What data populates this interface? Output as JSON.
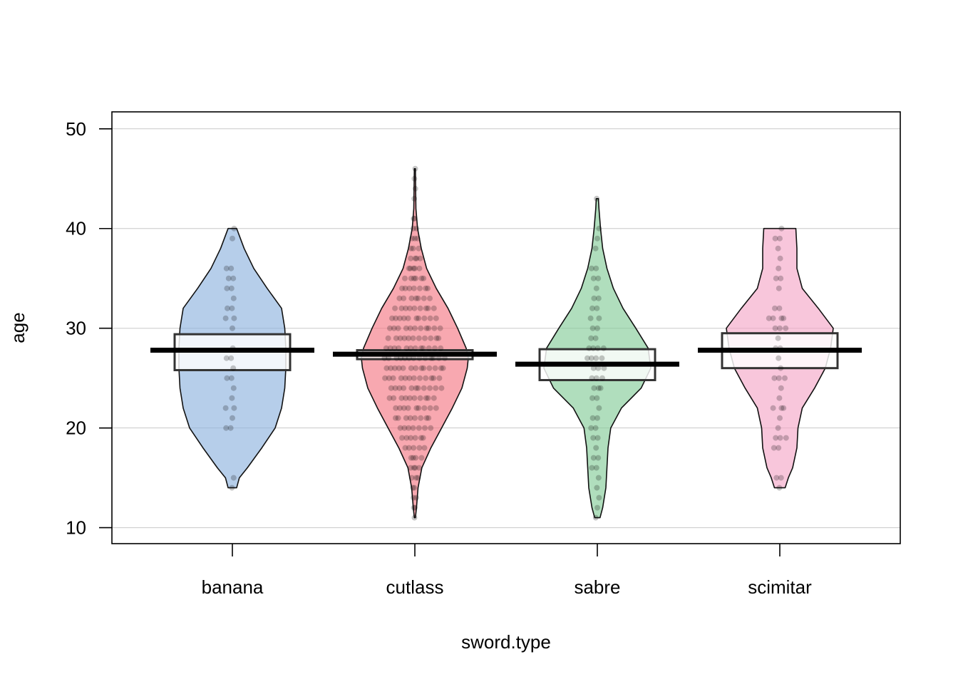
{
  "chart_data": {
    "type": "pirateplot",
    "xlabel": "sword.type",
    "ylabel": "age",
    "ylim": [
      8.4,
      51.7
    ],
    "y_ticks": [
      10,
      20,
      30,
      40,
      50
    ],
    "grid": true,
    "categories": [
      "banana",
      "cutlass",
      "sabre",
      "scimitar"
    ],
    "colors": [
      "#8FB4DE",
      "#F47A85",
      "#85CC99",
      "#F4A7C8"
    ],
    "groups": [
      {
        "name": "banana",
        "mean": 27.8,
        "hdi": [
          25.8,
          29.4
        ],
        "min": 14,
        "max": 40,
        "density": [
          [
            14,
            0.08
          ],
          [
            15,
            0.13
          ],
          [
            16,
            0.28
          ],
          [
            18,
            0.55
          ],
          [
            20,
            0.8
          ],
          [
            22,
            0.92
          ],
          [
            24,
            0.98
          ],
          [
            26,
            1.0
          ],
          [
            28,
            1.0
          ],
          [
            30,
            0.98
          ],
          [
            32,
            0.92
          ],
          [
            34,
            0.65
          ],
          [
            36,
            0.4
          ],
          [
            38,
            0.22
          ],
          [
            40,
            0.08
          ]
        ],
        "points": [
          14,
          15,
          20,
          20,
          21,
          22,
          22,
          23,
          24,
          25,
          25,
          26,
          27,
          27,
          28,
          30,
          31,
          31,
          32,
          32,
          33,
          34,
          34,
          35,
          35,
          36,
          36,
          39,
          40
        ]
      },
      {
        "name": "cutlass",
        "mean": 27.4,
        "hdi": [
          26.9,
          27.8
        ],
        "min": 11,
        "max": 46,
        "density": [
          [
            11,
            0.01
          ],
          [
            12,
            0.03
          ],
          [
            14,
            0.06
          ],
          [
            16,
            0.13
          ],
          [
            18,
            0.3
          ],
          [
            20,
            0.5
          ],
          [
            22,
            0.7
          ],
          [
            24,
            0.88
          ],
          [
            26,
            0.98
          ],
          [
            27,
            1.0
          ],
          [
            28,
            0.96
          ],
          [
            30,
            0.8
          ],
          [
            32,
            0.62
          ],
          [
            34,
            0.4
          ],
          [
            36,
            0.22
          ],
          [
            38,
            0.12
          ],
          [
            40,
            0.05
          ],
          [
            42,
            0.02
          ],
          [
            44,
            0.015
          ],
          [
            46,
            0.01
          ]
        ],
        "points": [
          11,
          12,
          12,
          13,
          13,
          14,
          14,
          15,
          15,
          15,
          16,
          16,
          16,
          16,
          17,
          17,
          17,
          17,
          18,
          18,
          18,
          18,
          18,
          19,
          19,
          19,
          19,
          19,
          19,
          20,
          20,
          20,
          20,
          20,
          20,
          20,
          21,
          21,
          21,
          21,
          21,
          21,
          21,
          21,
          22,
          22,
          22,
          22,
          22,
          22,
          22,
          22,
          22,
          23,
          23,
          23,
          23,
          23,
          23,
          23,
          23,
          23,
          23,
          24,
          24,
          24,
          24,
          24,
          24,
          24,
          24,
          24,
          24,
          24,
          25,
          25,
          25,
          25,
          25,
          25,
          25,
          25,
          25,
          25,
          25,
          25,
          26,
          26,
          26,
          26,
          26,
          26,
          26,
          26,
          26,
          26,
          26,
          26,
          26,
          27,
          27,
          27,
          27,
          27,
          27,
          27,
          27,
          27,
          27,
          27,
          27,
          27,
          28,
          28,
          28,
          28,
          28,
          28,
          28,
          28,
          28,
          28,
          28,
          28,
          29,
          29,
          29,
          29,
          29,
          29,
          29,
          29,
          29,
          29,
          29,
          30,
          30,
          30,
          30,
          30,
          30,
          30,
          30,
          30,
          30,
          30,
          31,
          31,
          31,
          31,
          31,
          31,
          31,
          31,
          31,
          31,
          32,
          32,
          32,
          32,
          32,
          32,
          32,
          32,
          32,
          33,
          33,
          33,
          33,
          33,
          33,
          33,
          34,
          34,
          34,
          34,
          34,
          34,
          34,
          35,
          35,
          35,
          35,
          35,
          35,
          36,
          36,
          36,
          36,
          36,
          37,
          37,
          37,
          37,
          38,
          38,
          38,
          39,
          39,
          39,
          40,
          40,
          41,
          41,
          43,
          44,
          45,
          46
        ]
      },
      {
        "name": "sabre",
        "mean": 26.4,
        "hdi": [
          24.8,
          27.9
        ],
        "min": 11,
        "max": 43,
        "density": [
          [
            11,
            0.05
          ],
          [
            12,
            0.1
          ],
          [
            14,
            0.16
          ],
          [
            16,
            0.18
          ],
          [
            18,
            0.2
          ],
          [
            20,
            0.25
          ],
          [
            22,
            0.45
          ],
          [
            24,
            0.82
          ],
          [
            26,
            1.0
          ],
          [
            28,
            0.95
          ],
          [
            30,
            0.72
          ],
          [
            32,
            0.48
          ],
          [
            34,
            0.3
          ],
          [
            36,
            0.18
          ],
          [
            38,
            0.1
          ],
          [
            40,
            0.06
          ],
          [
            42,
            0.03
          ],
          [
            43,
            0.02
          ]
        ],
        "points": [
          11,
          12,
          13,
          14,
          15,
          16,
          16,
          17,
          17,
          18,
          19,
          19,
          20,
          20,
          21,
          21,
          22,
          23,
          23,
          24,
          24,
          24,
          25,
          25,
          25,
          26,
          26,
          26,
          27,
          27,
          27,
          27,
          28,
          28,
          28,
          28,
          29,
          29,
          30,
          30,
          31,
          31,
          32,
          32,
          33,
          33,
          34,
          35,
          35,
          36,
          36,
          38,
          39,
          40,
          43
        ]
      },
      {
        "name": "scimitar",
        "mean": 27.8,
        "hdi": [
          26.0,
          29.5
        ],
        "min": 14,
        "max": 40,
        "density": [
          [
            14,
            0.1
          ],
          [
            15,
            0.16
          ],
          [
            16,
            0.24
          ],
          [
            18,
            0.32
          ],
          [
            20,
            0.34
          ],
          [
            22,
            0.42
          ],
          [
            24,
            0.65
          ],
          [
            26,
            0.85
          ],
          [
            28,
            0.95
          ],
          [
            30,
            1.0
          ],
          [
            32,
            0.72
          ],
          [
            34,
            0.42
          ],
          [
            36,
            0.32
          ],
          [
            38,
            0.32
          ],
          [
            40,
            0.3
          ]
        ],
        "points": [
          14,
          15,
          15,
          18,
          18,
          19,
          19,
          19,
          20,
          21,
          22,
          22,
          22,
          23,
          24,
          25,
          25,
          25,
          26,
          27,
          28,
          28,
          29,
          30,
          30,
          30,
          31,
          31,
          31,
          31,
          32,
          32,
          34,
          35,
          35,
          36,
          37,
          38,
          39,
          39,
          40
        ]
      }
    ]
  }
}
